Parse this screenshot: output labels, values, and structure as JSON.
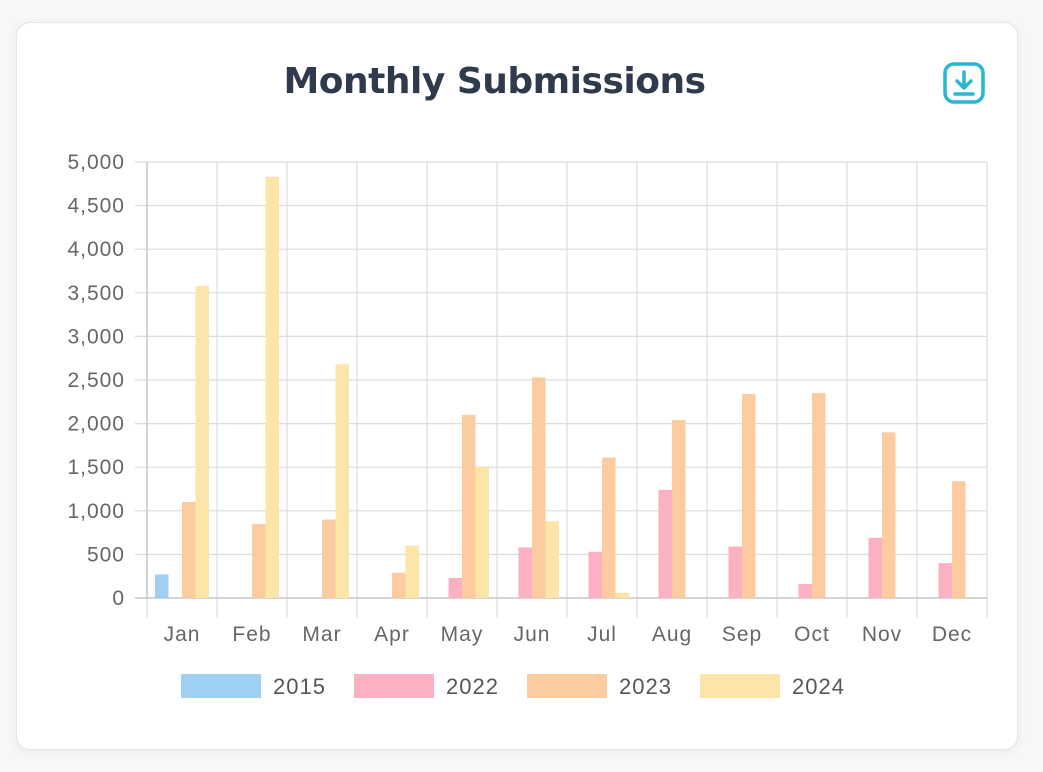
{
  "card": {
    "title": "Monthly Submissions",
    "download_icon": "download-icon"
  },
  "colors": {
    "title": "#2f3a4d",
    "accent": "#29b6d6",
    "series": [
      "#9fcff3",
      "#fbb1c1",
      "#fdcba0",
      "#fde5a9"
    ]
  },
  "chart_data": {
    "type": "bar",
    "title": "Monthly Submissions",
    "xlabel": "",
    "ylabel": "",
    "ylim": [
      0,
      5000
    ],
    "yticks": [
      0,
      500,
      1000,
      1500,
      2000,
      2500,
      3000,
      3500,
      4000,
      4500,
      5000
    ],
    "ytick_labels": [
      "0",
      "500",
      "1,000",
      "1,500",
      "2,000",
      "2,500",
      "3,000",
      "3,500",
      "4,000",
      "4,500",
      "5,000"
    ],
    "categories": [
      "Jan",
      "Feb",
      "Mar",
      "Apr",
      "May",
      "Jun",
      "Jul",
      "Aug",
      "Sep",
      "Oct",
      "Nov",
      "Dec"
    ],
    "grid": true,
    "legend_position": "bottom",
    "series": [
      {
        "name": "2015",
        "values": [
          270,
          0,
          0,
          0,
          0,
          0,
          0,
          0,
          0,
          0,
          0,
          0
        ]
      },
      {
        "name": "2022",
        "values": [
          0,
          0,
          0,
          0,
          230,
          580,
          530,
          1240,
          590,
          160,
          690,
          400
        ]
      },
      {
        "name": "2023",
        "values": [
          1100,
          850,
          900,
          290,
          2100,
          2530,
          1610,
          2040,
          2340,
          2350,
          1900,
          1340
        ]
      },
      {
        "name": "2024",
        "values": [
          3580,
          4830,
          2680,
          600,
          1510,
          880,
          60,
          0,
          0,
          0,
          0,
          0
        ]
      }
    ]
  }
}
